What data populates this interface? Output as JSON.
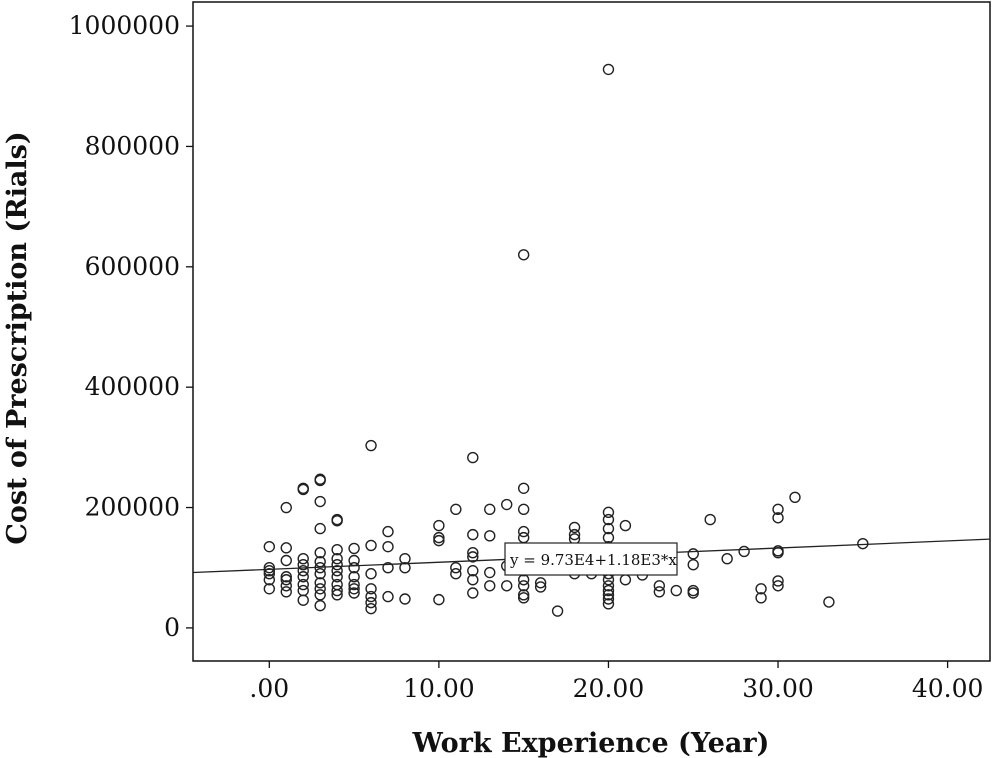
{
  "chart_data": {
    "type": "scatter",
    "xlabel": "Work Experience (Year)",
    "ylabel": "Cost of Prescription (Rials)",
    "xlim": [
      -4.5,
      42.5
    ],
    "ylim": [
      -55000,
      1040000
    ],
    "x_ticks": [
      0,
      10,
      20,
      30,
      40
    ],
    "x_tick_labels": [
      ".00",
      "10.00",
      "20.00",
      "30.00",
      "40.00"
    ],
    "y_ticks": [
      0,
      200000,
      400000,
      600000,
      800000,
      1000000
    ],
    "y_tick_labels": [
      "0",
      "200000",
      "400000",
      "600000",
      "800000",
      "1000000"
    ],
    "grid": false,
    "fit_line": {
      "intercept": 97300,
      "slope": 1180,
      "label": "y = 9.73E4+1.18E3*x"
    },
    "points": [
      {
        "x": 0,
        "y": 135000
      },
      {
        "x": 0,
        "y": 100000
      },
      {
        "x": 0,
        "y": 90000
      },
      {
        "x": 0,
        "y": 80000
      },
      {
        "x": 0,
        "y": 65000
      },
      {
        "x": 0,
        "y": 95000
      },
      {
        "x": 1,
        "y": 200000
      },
      {
        "x": 1,
        "y": 133000
      },
      {
        "x": 1,
        "y": 112000
      },
      {
        "x": 1,
        "y": 85000
      },
      {
        "x": 1,
        "y": 70000
      },
      {
        "x": 1,
        "y": 60000
      },
      {
        "x": 1,
        "y": 80000
      },
      {
        "x": 2,
        "y": 232000
      },
      {
        "x": 2,
        "y": 230000
      },
      {
        "x": 2,
        "y": 115000
      },
      {
        "x": 2,
        "y": 105000
      },
      {
        "x": 2,
        "y": 95000
      },
      {
        "x": 2,
        "y": 85000
      },
      {
        "x": 2,
        "y": 72000
      },
      {
        "x": 2,
        "y": 62000
      },
      {
        "x": 2,
        "y": 46000
      },
      {
        "x": 3,
        "y": 247000
      },
      {
        "x": 3,
        "y": 245000
      },
      {
        "x": 3,
        "y": 210000
      },
      {
        "x": 3,
        "y": 165000
      },
      {
        "x": 3,
        "y": 125000
      },
      {
        "x": 3,
        "y": 110000
      },
      {
        "x": 3,
        "y": 100000
      },
      {
        "x": 3,
        "y": 90000
      },
      {
        "x": 3,
        "y": 75000
      },
      {
        "x": 3,
        "y": 65000
      },
      {
        "x": 3,
        "y": 55000
      },
      {
        "x": 3,
        "y": 37000
      },
      {
        "x": 4,
        "y": 180000
      },
      {
        "x": 4,
        "y": 178000
      },
      {
        "x": 4,
        "y": 130000
      },
      {
        "x": 4,
        "y": 115000
      },
      {
        "x": 4,
        "y": 105000
      },
      {
        "x": 4,
        "y": 95000
      },
      {
        "x": 4,
        "y": 85000
      },
      {
        "x": 4,
        "y": 72000
      },
      {
        "x": 4,
        "y": 62000
      },
      {
        "x": 4,
        "y": 55000
      },
      {
        "x": 5,
        "y": 132000
      },
      {
        "x": 5,
        "y": 112000
      },
      {
        "x": 5,
        "y": 100000
      },
      {
        "x": 5,
        "y": 85000
      },
      {
        "x": 5,
        "y": 72000
      },
      {
        "x": 5,
        "y": 65000
      },
      {
        "x": 5,
        "y": 58000
      },
      {
        "x": 6,
        "y": 303000
      },
      {
        "x": 6,
        "y": 137000
      },
      {
        "x": 6,
        "y": 90000
      },
      {
        "x": 6,
        "y": 65000
      },
      {
        "x": 6,
        "y": 52000
      },
      {
        "x": 6,
        "y": 42000
      },
      {
        "x": 6,
        "y": 32000
      },
      {
        "x": 7,
        "y": 160000
      },
      {
        "x": 7,
        "y": 135000
      },
      {
        "x": 7,
        "y": 100000
      },
      {
        "x": 7,
        "y": 52000
      },
      {
        "x": 8,
        "y": 115000
      },
      {
        "x": 8,
        "y": 100000
      },
      {
        "x": 8,
        "y": 48000
      },
      {
        "x": 10,
        "y": 170000
      },
      {
        "x": 10,
        "y": 150000
      },
      {
        "x": 10,
        "y": 145000
      },
      {
        "x": 10,
        "y": 47000
      },
      {
        "x": 11,
        "y": 197000
      },
      {
        "x": 11,
        "y": 100000
      },
      {
        "x": 11,
        "y": 90000
      },
      {
        "x": 12,
        "y": 283000
      },
      {
        "x": 12,
        "y": 155000
      },
      {
        "x": 12,
        "y": 125000
      },
      {
        "x": 12,
        "y": 118000
      },
      {
        "x": 12,
        "y": 95000
      },
      {
        "x": 12,
        "y": 80000
      },
      {
        "x": 12,
        "y": 58000
      },
      {
        "x": 13,
        "y": 197000
      },
      {
        "x": 13,
        "y": 153000
      },
      {
        "x": 13,
        "y": 92000
      },
      {
        "x": 13,
        "y": 70000
      },
      {
        "x": 14,
        "y": 205000
      },
      {
        "x": 14,
        "y": 103000
      },
      {
        "x": 14,
        "y": 70000
      },
      {
        "x": 15,
        "y": 620000
      },
      {
        "x": 15,
        "y": 232000
      },
      {
        "x": 15,
        "y": 197000
      },
      {
        "x": 15,
        "y": 160000
      },
      {
        "x": 15,
        "y": 150000
      },
      {
        "x": 15,
        "y": 128000
      },
      {
        "x": 15,
        "y": 110000
      },
      {
        "x": 15,
        "y": 95000
      },
      {
        "x": 15,
        "y": 80000
      },
      {
        "x": 15,
        "y": 70000
      },
      {
        "x": 15,
        "y": 55000
      },
      {
        "x": 15,
        "y": 50000
      },
      {
        "x": 16,
        "y": 75000
      },
      {
        "x": 16,
        "y": 68000
      },
      {
        "x": 17,
        "y": 100000
      },
      {
        "x": 17,
        "y": 28000
      },
      {
        "x": 18,
        "y": 167000
      },
      {
        "x": 18,
        "y": 155000
      },
      {
        "x": 18,
        "y": 148000
      },
      {
        "x": 18,
        "y": 90000
      },
      {
        "x": 19,
        "y": 120000
      },
      {
        "x": 19,
        "y": 90000
      },
      {
        "x": 20,
        "y": 928000
      },
      {
        "x": 20,
        "y": 192000
      },
      {
        "x": 20,
        "y": 180000
      },
      {
        "x": 20,
        "y": 165000
      },
      {
        "x": 20,
        "y": 150000
      },
      {
        "x": 20,
        "y": 135000
      },
      {
        "x": 20,
        "y": 120000
      },
      {
        "x": 20,
        "y": 110000
      },
      {
        "x": 20,
        "y": 100000
      },
      {
        "x": 20,
        "y": 90000
      },
      {
        "x": 20,
        "y": 80000
      },
      {
        "x": 20,
        "y": 70000
      },
      {
        "x": 20,
        "y": 62000
      },
      {
        "x": 20,
        "y": 55000
      },
      {
        "x": 20,
        "y": 48000
      },
      {
        "x": 20,
        "y": 40000
      },
      {
        "x": 21,
        "y": 170000
      },
      {
        "x": 21,
        "y": 100000
      },
      {
        "x": 21,
        "y": 80000
      },
      {
        "x": 22,
        "y": 88000
      },
      {
        "x": 23,
        "y": 70000
      },
      {
        "x": 23,
        "y": 60000
      },
      {
        "x": 24,
        "y": 62000
      },
      {
        "x": 25,
        "y": 123000
      },
      {
        "x": 25,
        "y": 105000
      },
      {
        "x": 25,
        "y": 62000
      },
      {
        "x": 25,
        "y": 58000
      },
      {
        "x": 26,
        "y": 180000
      },
      {
        "x": 27,
        "y": 115000
      },
      {
        "x": 28,
        "y": 127000
      },
      {
        "x": 29,
        "y": 65000
      },
      {
        "x": 29,
        "y": 50000
      },
      {
        "x": 30,
        "y": 197000
      },
      {
        "x": 30,
        "y": 183000
      },
      {
        "x": 30,
        "y": 128000
      },
      {
        "x": 30,
        "y": 125000
      },
      {
        "x": 30,
        "y": 78000
      },
      {
        "x": 30,
        "y": 70000
      },
      {
        "x": 31,
        "y": 217000
      },
      {
        "x": 33,
        "y": 43000
      },
      {
        "x": 35,
        "y": 140000
      }
    ]
  }
}
